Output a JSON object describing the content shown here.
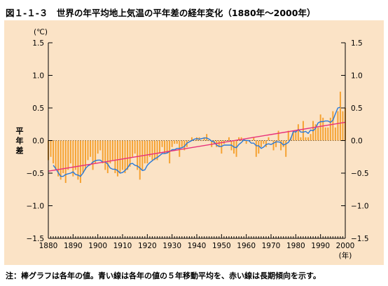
{
  "figure": {
    "title": "図１-１-３　世界の年平均地上気温の平年差の経年変化（1880年〜2000年）",
    "note": "注：棒グラフは各年の値。青い線は各年の値の５年移動平均を、赤い線は長期傾向を示す。"
  },
  "colors": {
    "panel_bg": "#fbe3c6",
    "bars": "#f5a12f",
    "moving_average": "#2878d8",
    "trend": "#e8307a"
  },
  "chart_data": {
    "type": "bar",
    "title": "世界の年平均地上気温の平年差の経年変化（1880年〜2000年）",
    "ylabel": "平年差",
    "unit_label": "(℃)",
    "xlabel_unit": "(年)",
    "ylim": [
      -1.5,
      1.5
    ],
    "xlim": [
      1880,
      2000
    ],
    "y_ticks": [
      1.5,
      1.0,
      0.5,
      0.0,
      -0.5,
      -1.0,
      -1.5
    ],
    "y_tick_labels": [
      "1.5",
      "1.0",
      "0.5",
      "0.0",
      "−0.5",
      "−1.0",
      "−1.5"
    ],
    "x_ticks": [
      1880,
      1890,
      1900,
      1910,
      1920,
      1930,
      1940,
      1950,
      1960,
      1970,
      1980,
      1990,
      2000
    ],
    "x_tick_labels": [
      "1880",
      "1890",
      "1900",
      "1910",
      "1920",
      "1930",
      "1940",
      "1950",
      "1960",
      "1970",
      "1980",
      "1990",
      "2000"
    ],
    "years": [
      1880,
      1881,
      1882,
      1883,
      1884,
      1885,
      1886,
      1887,
      1888,
      1889,
      1890,
      1891,
      1892,
      1893,
      1894,
      1895,
      1896,
      1897,
      1898,
      1899,
      1900,
      1901,
      1902,
      1903,
      1904,
      1905,
      1906,
      1907,
      1908,
      1909,
      1910,
      1911,
      1912,
      1913,
      1914,
      1915,
      1916,
      1917,
      1918,
      1919,
      1920,
      1921,
      1922,
      1923,
      1924,
      1925,
      1926,
      1927,
      1928,
      1929,
      1930,
      1931,
      1932,
      1933,
      1934,
      1935,
      1936,
      1937,
      1938,
      1939,
      1940,
      1941,
      1942,
      1943,
      1944,
      1945,
      1946,
      1947,
      1948,
      1949,
      1950,
      1951,
      1952,
      1953,
      1954,
      1955,
      1956,
      1957,
      1958,
      1959,
      1960,
      1961,
      1962,
      1963,
      1964,
      1965,
      1966,
      1967,
      1968,
      1969,
      1970,
      1971,
      1972,
      1973,
      1974,
      1975,
      1976,
      1977,
      1978,
      1979,
      1980,
      1981,
      1982,
      1983,
      1984,
      1985,
      1986,
      1987,
      1988,
      1989,
      1990,
      1991,
      1992,
      1993,
      1994,
      1995,
      1996,
      1997,
      1998,
      1999,
      2000
    ],
    "series": [
      {
        "name": "各年の値",
        "values": [
          -0.3,
          -0.25,
          -0.35,
          -0.45,
          -0.55,
          -0.6,
          -0.5,
          -0.65,
          -0.45,
          -0.35,
          -0.55,
          -0.45,
          -0.6,
          -0.65,
          -0.5,
          -0.45,
          -0.3,
          -0.25,
          -0.45,
          -0.35,
          -0.2,
          -0.15,
          -0.35,
          -0.45,
          -0.5,
          -0.35,
          -0.3,
          -0.5,
          -0.55,
          -0.5,
          -0.45,
          -0.5,
          -0.45,
          -0.4,
          -0.25,
          -0.2,
          -0.45,
          -0.6,
          -0.45,
          -0.35,
          -0.35,
          -0.25,
          -0.3,
          -0.3,
          -0.3,
          -0.2,
          -0.1,
          -0.2,
          -0.2,
          -0.35,
          -0.1,
          -0.05,
          -0.05,
          -0.25,
          -0.1,
          -0.15,
          -0.1,
          0.0,
          0.05,
          0.0,
          0.05,
          0.05,
          0.0,
          0.05,
          0.1,
          0.0,
          -0.1,
          -0.05,
          -0.1,
          -0.1,
          -0.2,
          -0.05,
          0.0,
          0.05,
          -0.15,
          -0.2,
          -0.25,
          0.05,
          0.05,
          0.0,
          -0.05,
          0.0,
          0.0,
          0.05,
          -0.25,
          -0.2,
          -0.1,
          -0.05,
          -0.1,
          0.05,
          0.0,
          -0.15,
          -0.1,
          0.15,
          -0.15,
          -0.1,
          -0.25,
          0.15,
          0.05,
          0.15,
          0.15,
          0.25,
          0.05,
          0.3,
          0.05,
          0.05,
          0.1,
          0.3,
          0.25,
          0.2,
          0.4,
          0.35,
          0.2,
          0.2,
          0.35,
          0.45,
          0.2,
          0.45,
          0.75,
          0.45,
          0.5
        ]
      },
      {
        "name": "５年移動平均",
        "values": [
          null,
          null,
          -0.38,
          -0.43,
          -0.49,
          -0.55,
          -0.55,
          -0.52,
          -0.51,
          -0.5,
          -0.48,
          -0.52,
          -0.53,
          -0.55,
          -0.5,
          -0.43,
          -0.39,
          -0.37,
          -0.33,
          -0.31,
          -0.3,
          -0.3,
          -0.33,
          -0.33,
          -0.36,
          -0.42,
          -0.44,
          -0.44,
          -0.46,
          -0.5,
          -0.49,
          -0.46,
          -0.42,
          -0.36,
          -0.35,
          -0.38,
          -0.39,
          -0.42,
          -0.46,
          -0.45,
          -0.38,
          -0.34,
          -0.31,
          -0.28,
          -0.26,
          -0.23,
          -0.2,
          -0.2,
          -0.19,
          -0.17,
          -0.14,
          -0.14,
          -0.12,
          -0.12,
          -0.11,
          -0.09,
          -0.04,
          -0.02,
          0.0,
          0.02,
          0.03,
          0.02,
          0.03,
          0.04,
          0.04,
          0.02,
          -0.01,
          -0.02,
          -0.07,
          -0.09,
          -0.09,
          -0.07,
          -0.07,
          -0.07,
          -0.07,
          -0.1,
          -0.11,
          -0.06,
          -0.03,
          0.01,
          0.0,
          0.0,
          -0.04,
          -0.04,
          -0.08,
          -0.08,
          -0.12,
          -0.1,
          -0.06,
          -0.05,
          -0.06,
          -0.04,
          -0.02,
          -0.02,
          -0.03,
          -0.07,
          -0.05,
          -0.03,
          0.03,
          0.14,
          0.13,
          0.17,
          0.13,
          0.13,
          0.14,
          0.11,
          0.16,
          0.15,
          0.19,
          0.27,
          0.29,
          0.29,
          0.3,
          0.3,
          0.28,
          0.31,
          0.41,
          0.5,
          0.51,
          null,
          null
        ]
      }
    ],
    "trend": {
      "name": "長期傾向",
      "x": [
        1880,
        2000
      ],
      "y": [
        -0.47,
        0.28
      ]
    }
  }
}
